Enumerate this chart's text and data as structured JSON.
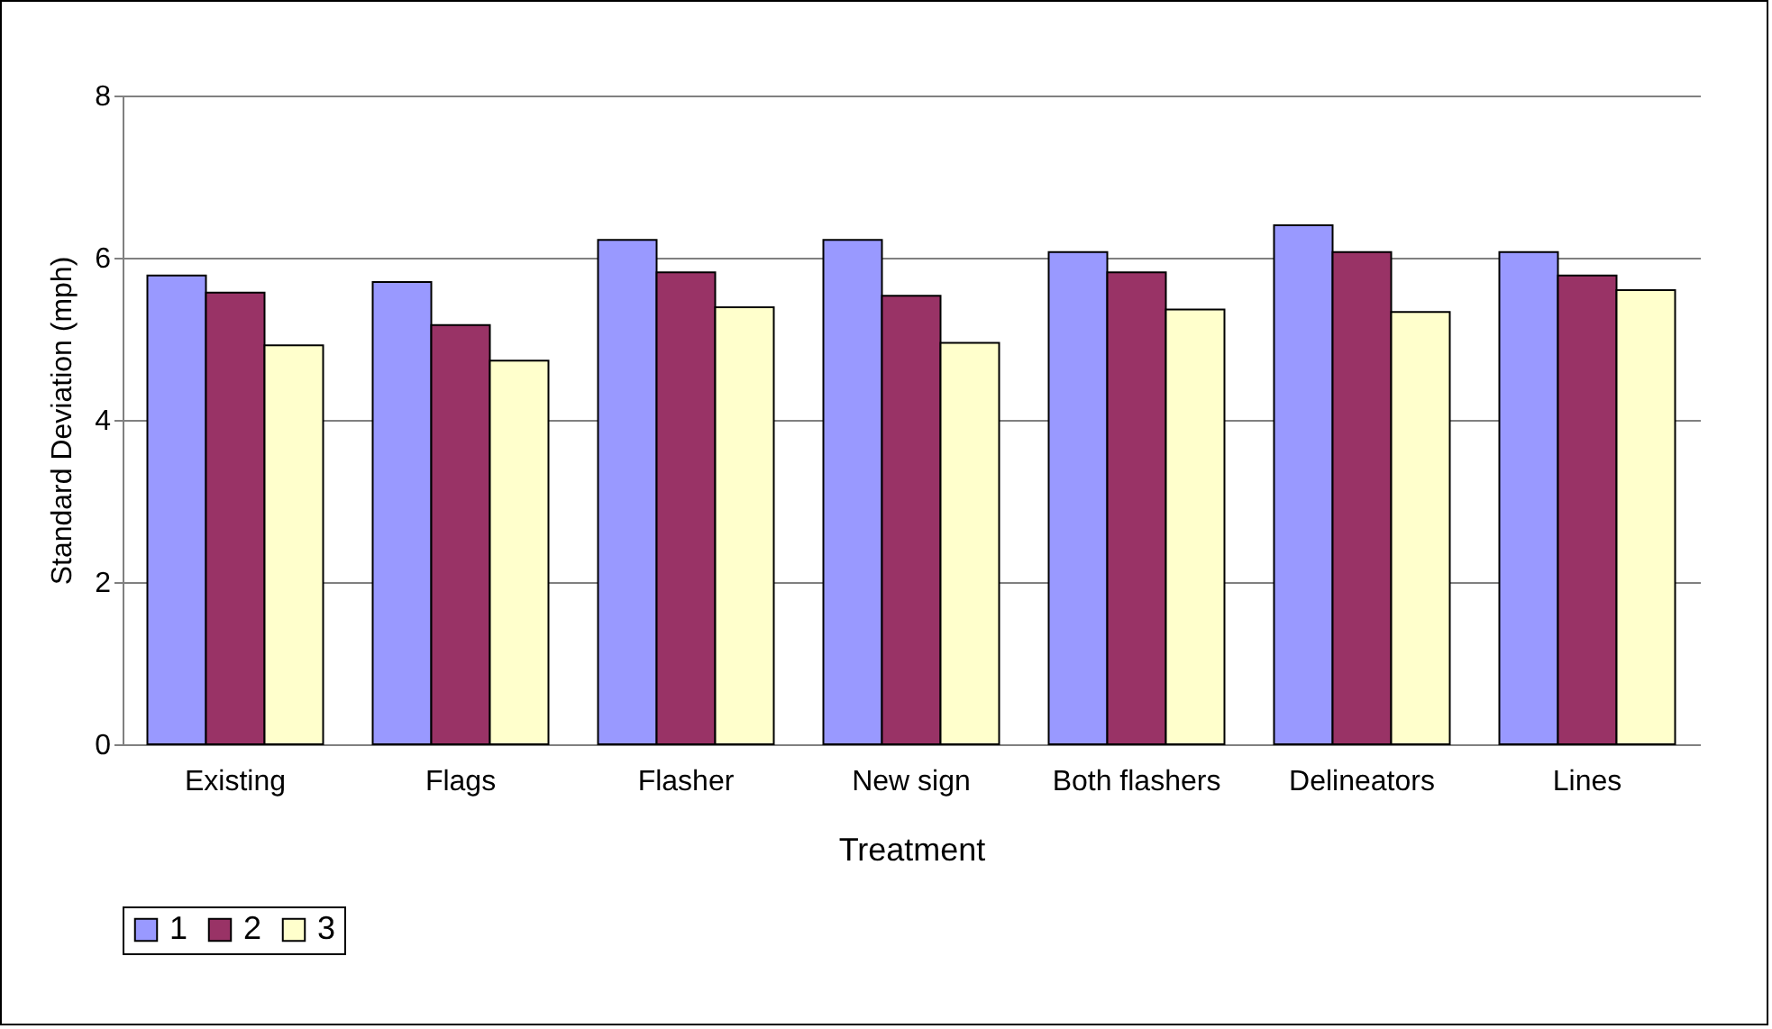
{
  "chart_data": {
    "type": "bar",
    "xlabel": "Treatment",
    "ylabel": "Standard Deviation (mph)",
    "categories": [
      "Existing",
      "Flags",
      "Flasher",
      "New sign",
      "Both flashers",
      "Delineators",
      "Lines"
    ],
    "series": [
      {
        "name": "1",
        "color": "#9999ff",
        "values": [
          5.78,
          5.7,
          6.22,
          6.22,
          6.07,
          6.4,
          6.07
        ]
      },
      {
        "name": "2",
        "color": "#993366",
        "values": [
          5.57,
          5.17,
          5.82,
          5.53,
          5.82,
          6.07,
          5.78
        ]
      },
      {
        "name": "3",
        "color": "#ffffcc",
        "values": [
          4.92,
          4.73,
          5.39,
          4.95,
          5.36,
          5.33,
          5.6
        ]
      }
    ],
    "ylim": [
      0,
      8
    ],
    "yticks": [
      0,
      2,
      4,
      6,
      8
    ],
    "grid": "y",
    "legend": "bottom"
  }
}
